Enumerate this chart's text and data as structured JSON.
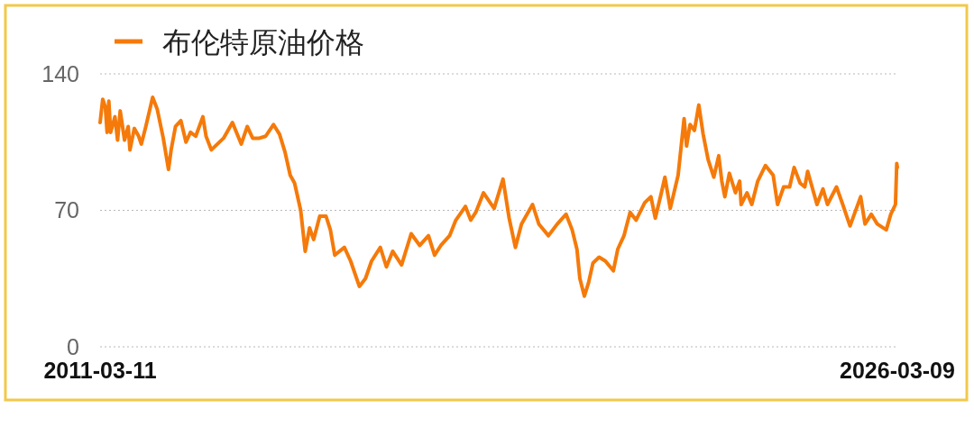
{
  "chart_data": {
    "type": "line",
    "x": [
      "2011-03-11",
      "2011-03-29",
      "2011-04-16",
      "2011-04-28",
      "2011-05-10",
      "2011-05-22",
      "2011-06-21",
      "2011-07-09",
      "2011-07-27",
      "2011-08-26",
      "2011-09-20",
      "2011-10-02",
      "2011-11-01",
      "2011-12-01",
      "2011-12-19",
      "2012-01-19",
      "2012-03-06",
      "2012-04-06",
      "2012-05-18",
      "2012-06-23",
      "2012-07-11",
      "2012-08-10",
      "2012-09-16",
      "2012-10-21",
      "2012-11-21",
      "2012-12-27",
      "2013-02-14",
      "2013-03-08",
      "2013-04-13",
      "2013-05-25",
      "2013-07-06",
      "2013-09-05",
      "2013-11-05",
      "2013-12-16",
      "2014-01-22",
      "2014-03-09",
      "2014-04-21",
      "2014-06-14",
      "2014-07-26",
      "2014-09-01",
      "2014-10-07",
      "2014-11-06",
      "2014-12-18",
      "2015-01-18",
      "2015-02-17",
      "2015-03-17",
      "2015-04-28",
      "2015-06-10",
      "2015-07-10",
      "2015-08-09",
      "2015-10-14",
      "2015-11-26",
      "2016-01-25",
      "2016-03-07",
      "2016-04-18",
      "2016-06-17",
      "2016-07-29",
      "2016-09-10",
      "2016-11-10",
      "2017-01-15",
      "2017-03-15",
      "2017-05-14",
      "2017-06-25",
      "2017-08-07",
      "2017-10-06",
      "2017-11-18",
      "2018-01-23",
      "2018-02-28",
      "2018-04-04",
      "2018-05-27",
      "2018-08-08",
      "2018-10-08",
      "2018-11-19",
      "2019-01-01",
      "2019-02-12",
      "2019-04-29",
      "2019-06-11",
      "2019-08-16",
      "2019-10-16",
      "2019-12-15",
      "2020-01-26",
      "2020-02-28",
      "2020-03-19",
      "2020-04-19",
      "2020-05-18",
      "2020-06-17",
      "2020-07-29",
      "2020-09-10",
      "2020-11-04",
      "2020-12-04",
      "2021-01-16",
      "2021-02-27",
      "2021-04-09",
      "2021-06-08",
      "2021-07-20",
      "2021-08-19",
      "2021-09-30",
      "2021-10-24",
      "2021-11-30",
      "2022-01-23",
      "2022-03-05",
      "2022-03-22",
      "2022-04-15",
      "2022-05-15",
      "2022-06-14",
      "2022-07-14",
      "2022-08-17",
      "2022-09-25",
      "2022-10-29",
      "2022-11-19",
      "2022-12-10",
      "2023-01-10",
      "2023-02-21",
      "2023-03-22",
      "2023-04-01",
      "2023-05-11",
      "2023-06-13",
      "2023-07-24",
      "2023-09-15",
      "2023-11-07",
      "2023-12-07",
      "2024-01-18",
      "2024-02-28",
      "2024-03-30",
      "2024-05-10",
      "2024-06-11",
      "2024-07-01",
      "2024-09-03",
      "2024-10-14",
      "2024-11-14",
      "2025-01-15",
      "2025-02-27",
      "2025-04-18",
      "2025-06-30",
      "2025-07-30",
      "2025-09-11",
      "2025-10-22",
      "2025-12-23",
      "2026-01-23",
      "2026-02-24",
      "2026-03-05",
      "2026-03-09"
    ],
    "series": [
      {
        "name": "布伦特原油价格",
        "color": "#f57a0a",
        "values": [
          115,
          127,
          123,
          110,
          126,
          110,
          118,
          106,
          121,
          106,
          113,
          101,
          112,
          108,
          104,
          113,
          128,
          122,
          107,
          91,
          101,
          113,
          116,
          105,
          110,
          108,
          118,
          108,
          101,
          104,
          107,
          115,
          104,
          113,
          107,
          107,
          108,
          114,
          109,
          100,
          88,
          84,
          70,
          49,
          61,
          55,
          67,
          67,
          60,
          47,
          51,
          44,
          31,
          35,
          44,
          51,
          41,
          49,
          42,
          58,
          52,
          57,
          47,
          52,
          57,
          65,
          72,
          65,
          69,
          79,
          71,
          86,
          66,
          51,
          63,
          73,
          63,
          57,
          63,
          68,
          60,
          50,
          35,
          26,
          33,
          43,
          46,
          44,
          39,
          50,
          57,
          69,
          65,
          74,
          77,
          66,
          79,
          87,
          71,
          88,
          117,
          103,
          114,
          111,
          124,
          109,
          96,
          87,
          98,
          85,
          77,
          89,
          79,
          85,
          73,
          79,
          73,
          85,
          93,
          88,
          73,
          82,
          82,
          92,
          84,
          82,
          90,
          73,
          81,
          73,
          82,
          73,
          62,
          77,
          63,
          68,
          63,
          60,
          68,
          73,
          94,
          92
        ]
      }
    ],
    "xlim": [
      "2011-03-11",
      "2026-03-09"
    ],
    "xticks": [
      "2011-03-11",
      "2026-03-09"
    ],
    "ylim": [
      0,
      140
    ],
    "yticks": [
      0,
      70,
      140
    ],
    "grid": "y",
    "legend": "top left"
  }
}
